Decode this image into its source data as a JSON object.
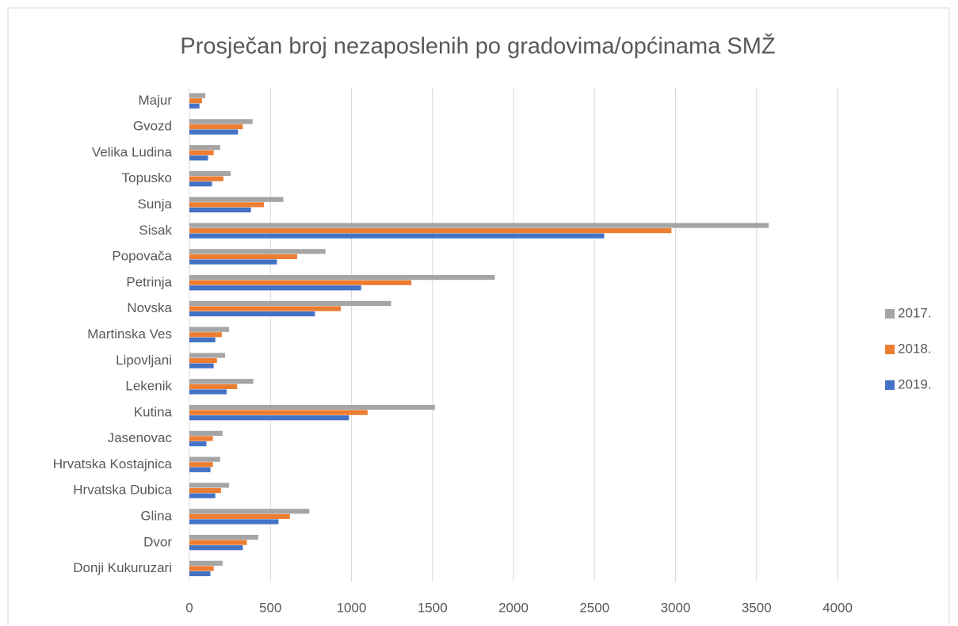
{
  "chart_data": {
    "type": "hbar",
    "title": "Prosječan broj nezaposlenih po gradovima/općinama SMŽ",
    "categories": [
      "Majur",
      "Gvozd",
      "Velika Ludina",
      "Topusko",
      "Sunja",
      "Sisak",
      "Popovača",
      "Petrinja",
      "Novska",
      "Martinska Ves",
      "Lipovljani",
      "Lekenik",
      "Kutina",
      "Jasenovac",
      "Hrvatska Kostajnica",
      "Hrvatska Dubica",
      "Glina",
      "Dvor",
      "Donji Kukuruzari"
    ],
    "series": [
      {
        "name": "2017.",
        "color": "#a5a5a5",
        "values": [
          98,
          390,
          190,
          255,
          580,
          3575,
          840,
          1885,
          1245,
          245,
          220,
          395,
          1515,
          205,
          190,
          245,
          740,
          425,
          205
        ]
      },
      {
        "name": "2018.",
        "color": "#ed7d31",
        "values": [
          78,
          330,
          150,
          210,
          460,
          2975,
          665,
          1370,
          935,
          200,
          170,
          295,
          1100,
          145,
          145,
          195,
          620,
          355,
          150
        ]
      },
      {
        "name": "2019.",
        "color": "#4472c4",
        "values": [
          62,
          300,
          115,
          140,
          380,
          2560,
          540,
          1060,
          775,
          160,
          150,
          230,
          985,
          105,
          130,
          160,
          550,
          330,
          130
        ]
      }
    ],
    "xlim": [
      0,
      4000
    ],
    "xticks": [
      0,
      500,
      1000,
      1500,
      2000,
      2500,
      3000,
      3500,
      4000
    ],
    "grid": true,
    "legend": "right"
  }
}
